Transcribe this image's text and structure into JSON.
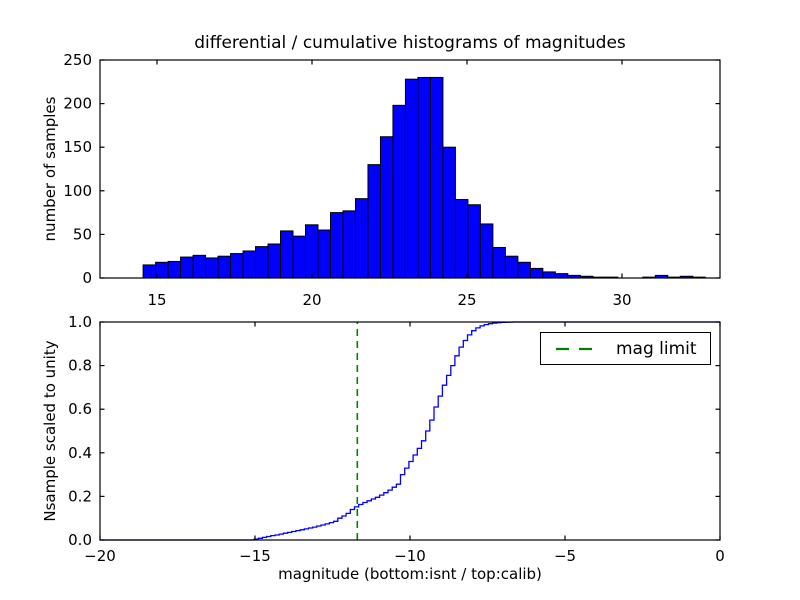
{
  "top_plot": {
    "title": "differential / cumulative histograms of magnitudes",
    "ylabel": "number of samples"
  },
  "bottom_plot": {
    "ylabel": "Nsample scaled to unity",
    "xlabel": "magnitude (bottom:isnt / top:calib)"
  },
  "legend": {
    "label": "mag limit",
    "sample_color": "#008000",
    "sample_style": "dashed"
  },
  "colors": {
    "histogram_fill": "#0000ff",
    "histogram_edge": "#000000",
    "curve": "#0000ff",
    "mag_limit_line": "#008000",
    "axes": "#000000",
    "background": "#ffffff"
  },
  "chart_data": [
    {
      "type": "bar",
      "subplot": "top",
      "ylabel": "number of samples",
      "xlim": [
        13.16,
        33.16
      ],
      "ylim": [
        0,
        250
      ],
      "xticks": [
        15,
        20,
        25,
        30
      ],
      "yticks": [
        0,
        50,
        100,
        150,
        200,
        250
      ],
      "bin_start": 14.55,
      "bin_width": 0.403,
      "counts": [
        15,
        18,
        19,
        24,
        26,
        23,
        25,
        28,
        31,
        36,
        39,
        54,
        48,
        61,
        55,
        75,
        77,
        91,
        130,
        162,
        198,
        228,
        230,
        230,
        150,
        90,
        84,
        62,
        35,
        25,
        18,
        11,
        7,
        5,
        3,
        2,
        1,
        1,
        0,
        0,
        1,
        3,
        1,
        2,
        1
      ]
    },
    {
      "type": "line",
      "subplot": "bottom",
      "style": "step-cumulative",
      "ylabel": "Nsample scaled to unity",
      "xlabel": "magnitude (bottom:isnt / top:calib)",
      "xlim": [
        -20,
        0
      ],
      "ylim": [
        0.0,
        1.0
      ],
      "xticks": [
        -20,
        -15,
        -10,
        -5,
        0
      ],
      "yticks": [
        0.0,
        0.2,
        0.4,
        0.6,
        0.8,
        1.0
      ],
      "step_start": -15.03,
      "step_width": 0.135,
      "cumulative_fraction": [
        0.004,
        0.008,
        0.012,
        0.016,
        0.02,
        0.023,
        0.027,
        0.031,
        0.035,
        0.039,
        0.043,
        0.047,
        0.051,
        0.055,
        0.059,
        0.064,
        0.069,
        0.074,
        0.08,
        0.086,
        0.1,
        0.11,
        0.122,
        0.14,
        0.152,
        0.163,
        0.172,
        0.18,
        0.188,
        0.196,
        0.206,
        0.217,
        0.229,
        0.242,
        0.256,
        0.3,
        0.33,
        0.36,
        0.39,
        0.42,
        0.455,
        0.5,
        0.55,
        0.61,
        0.66,
        0.71,
        0.755,
        0.8,
        0.845,
        0.885,
        0.915,
        0.941,
        0.96,
        0.973,
        0.982,
        0.988,
        0.992,
        0.995,
        0.997,
        0.998,
        0.999,
        0.9995,
        1.0
      ],
      "mag_limit_x": -11.7,
      "legend": [
        "mag limit"
      ]
    }
  ]
}
